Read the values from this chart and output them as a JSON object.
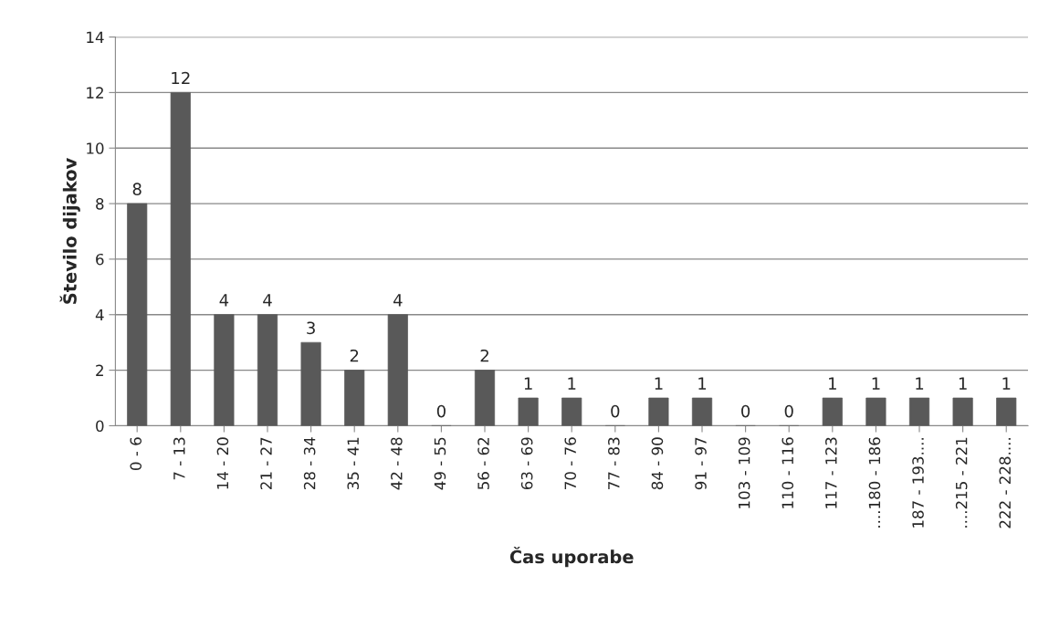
{
  "chart_data": {
    "type": "bar",
    "xlabel": "Čas uporabe",
    "ylabel": "Število dijakov",
    "categories": [
      "0 - 6",
      "7 - 13",
      "14 - 20",
      "21 - 27",
      "28 - 34",
      "35 - 41",
      "42 - 48",
      "49 - 55",
      "56 - 62",
      "63 - 69",
      "70 - 76",
      "77 - 83",
      "84 - 90",
      "91 - 97",
      "103 - 109",
      "110 - 116",
      "117 - 123",
      "....180 - 186",
      "187 - 193....",
      "....215 - 221",
      "222 - 228...."
    ],
    "values": [
      8,
      12,
      4,
      4,
      3,
      2,
      4,
      0,
      2,
      1,
      1,
      0,
      1,
      1,
      0,
      0,
      1,
      1,
      1,
      1,
      1
    ],
    "color": "#595959",
    "ylim": [
      0,
      14
    ],
    "yticks": [
      0,
      2,
      4,
      6,
      8,
      10,
      12,
      14
    ],
    "grid": "y",
    "data_labels": true
  }
}
